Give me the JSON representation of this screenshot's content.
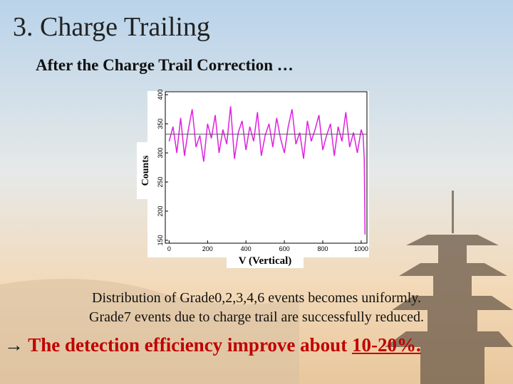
{
  "header": {
    "title": "3. Charge Trailing",
    "subtitle": "After the Charge Trail Correction …"
  },
  "chart_data": {
    "type": "line",
    "ylabel": "Counts",
    "xlabel": "V (Vertical)",
    "xlim": [
      -20,
      1030
    ],
    "ylim": [
      145,
      405
    ],
    "xticks": [
      0,
      200,
      400,
      600,
      800,
      1000
    ],
    "yticks": [
      150,
      200,
      250,
      300,
      350,
      400
    ],
    "reference_line": 332,
    "reference_color": "#555555",
    "series": [
      {
        "name": "Counts",
        "color": "#e020e0",
        "x": [
          0,
          20,
          40,
          60,
          80,
          100,
          120,
          140,
          160,
          180,
          200,
          220,
          240,
          260,
          280,
          300,
          320,
          340,
          360,
          380,
          400,
          420,
          440,
          460,
          480,
          500,
          520,
          540,
          560,
          580,
          600,
          620,
          640,
          660,
          680,
          700,
          720,
          740,
          760,
          780,
          800,
          820,
          840,
          860,
          880,
          900,
          920,
          940,
          960,
          980,
          1000,
          1010,
          1016,
          1020
        ],
        "values": [
          320,
          345,
          300,
          360,
          295,
          340,
          375,
          310,
          330,
          285,
          350,
          325,
          365,
          300,
          340,
          315,
          380,
          290,
          335,
          355,
          305,
          345,
          320,
          370,
          295,
          330,
          350,
          310,
          360,
          325,
          300,
          345,
          375,
          315,
          335,
          290,
          355,
          320,
          340,
          365,
          305,
          330,
          350,
          295,
          345,
          320,
          370,
          310,
          335,
          300,
          340,
          330,
          290,
          160
        ]
      }
    ]
  },
  "body": {
    "line1": "Distribution of Grade0,2,3,4,6 events becomes uniformly.",
    "line2": "Grade7 events due to charge trail are successfully reduced.",
    "arrow": "→",
    "conclusion": "The detection efficiency improve about ",
    "highlight": "10-20%."
  }
}
